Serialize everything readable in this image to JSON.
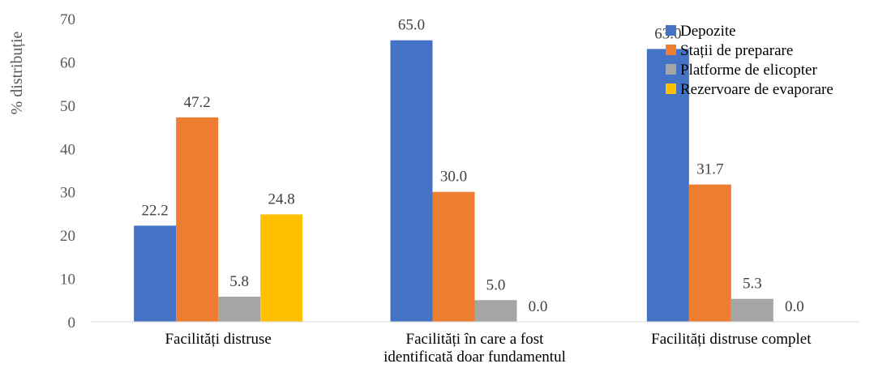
{
  "chart_data": {
    "type": "bar",
    "ylabel": "% distribuție",
    "ylim": [
      0,
      70
    ],
    "yticks": [
      0,
      10,
      20,
      30,
      40,
      50,
      60,
      70
    ],
    "categories": [
      [
        "Facilități distruse"
      ],
      [
        "Facilități în care a fost",
        "identificată doar fundamentul"
      ],
      [
        "Facilități distruse complet"
      ]
    ],
    "series": [
      {
        "name": "Depozite",
        "color": "#4472C4",
        "values": [
          22.2,
          65.0,
          63.0
        ]
      },
      {
        "name": "Stații de preparare",
        "color": "#ED7D31",
        "values": [
          47.2,
          30.0,
          31.7
        ]
      },
      {
        "name": "Platforme de elicopter",
        "color": "#A5A5A5",
        "values": [
          5.8,
          5.0,
          5.3
        ]
      },
      {
        "name": "Rezervoare de evaporare",
        "color": "#FFC000",
        "values": [
          24.8,
          0.0,
          0.0
        ]
      }
    ],
    "legend_position": "top-right",
    "grid": false
  }
}
